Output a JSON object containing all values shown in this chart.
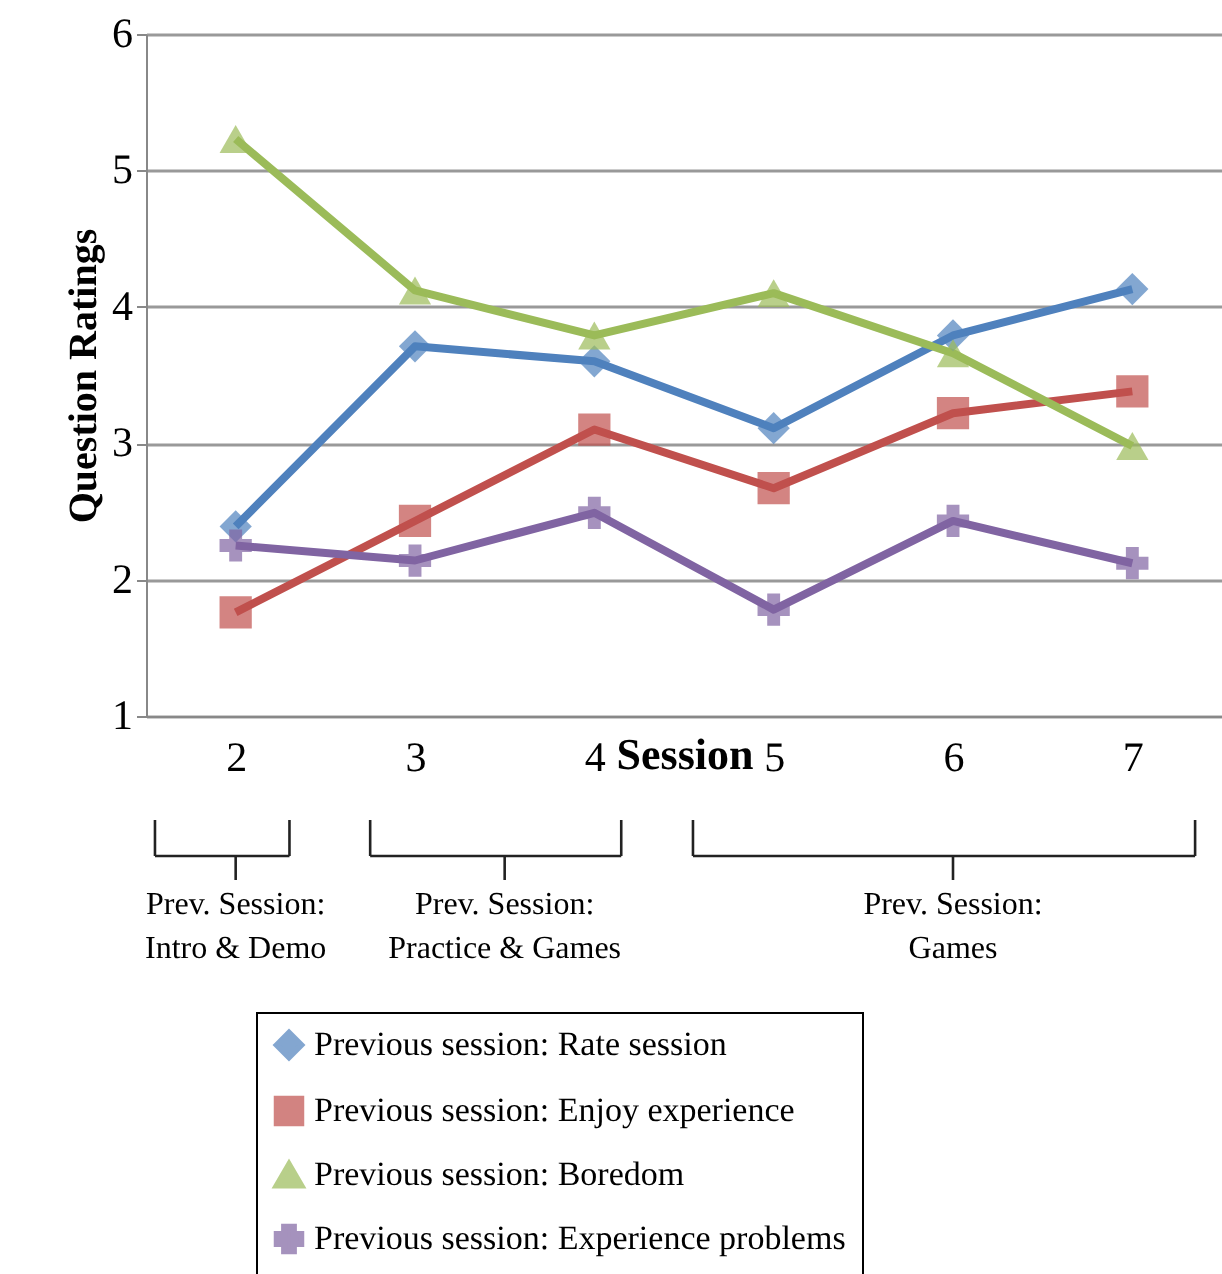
{
  "chart_data": {
    "type": "line",
    "xlabel": "Session",
    "ylabel": "Question Ratings",
    "categories": [
      "2",
      "3",
      "4",
      "5",
      "6",
      "7"
    ],
    "series": [
      {
        "name": "Previous session: Rate session",
        "color": "#4f81bd",
        "marker": "diamond",
        "values": [
          2.39,
          3.71,
          3.6,
          3.11,
          3.79,
          4.13
        ]
      },
      {
        "name": "Previous session: Enjoy experience",
        "color": "#c0504d",
        "marker": "square",
        "values": [
          1.76,
          2.43,
          3.1,
          2.67,
          3.22,
          3.38
        ]
      },
      {
        "name": "Previous session: Boredom",
        "color": "#9bbb59",
        "marker": "triangle",
        "values": [
          5.23,
          4.12,
          3.79,
          4.1,
          3.66,
          2.98
        ]
      },
      {
        "name": "Previous session: Experience problems",
        "color": "#8064a2",
        "marker": "cross",
        "values": [
          2.25,
          2.14,
          2.49,
          1.78,
          2.43,
          2.12
        ]
      }
    ],
    "ylim": [
      1,
      6
    ],
    "yticks": [
      1,
      2,
      3,
      4,
      5,
      6
    ],
    "grid": "y",
    "legend": "bottom",
    "line_style": "solid",
    "annotations": [
      "Prev. Session:\nIntro & Demo",
      "Prev. Session:\nPractice & Games",
      "Prev. Session:\nGames"
    ]
  }
}
